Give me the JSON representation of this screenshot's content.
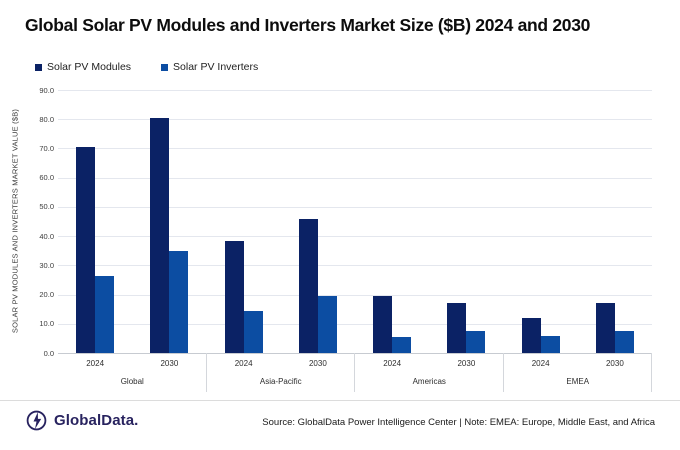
{
  "header": {
    "title": "Global Solar PV Modules and Inverters Market Size ($B) 2024 and 2030"
  },
  "legend": {
    "items": [
      {
        "label": "Solar PV Modules",
        "color": "#0b2265"
      },
      {
        "label": "Solar PV Inverters",
        "color": "#0c4da2"
      }
    ]
  },
  "chart_data": {
    "type": "bar",
    "title": "Global Solar PV Modules and Inverters Market Size ($B) 2024 and 2030",
    "ylabel": "SOLAR PV MODULES AND INVERTERS MARKET VALUE ($B)",
    "xlabel": "",
    "ylim": [
      0,
      90
    ],
    "ytick_step": 10,
    "grid": true,
    "legend_position": "top-left",
    "groups": [
      "Global",
      "Asia-Pacific",
      "Americas",
      "EMEA"
    ],
    "categories": [
      "2024",
      "2030"
    ],
    "series": [
      {
        "name": "Solar PV Modules",
        "color": "#0b2265",
        "values": [
          [
            70.5,
            80.5
          ],
          [
            38.5,
            46.0
          ],
          [
            19.5,
            17.0
          ],
          [
            12.0,
            17.0
          ]
        ]
      },
      {
        "name": "Solar PV Inverters",
        "color": "#0c4da2",
        "values": [
          [
            26.5,
            35.0
          ],
          [
            14.5,
            19.5
          ],
          [
            5.5,
            7.5
          ],
          [
            6.0,
            7.5
          ]
        ]
      }
    ]
  },
  "footer": {
    "logo_text": "GlobalData.",
    "logo_color": "#28235f",
    "source_text": "Source: GlobalData Power Intelligence Center | Note: EMEA: Europe, Middle East, and Africa"
  }
}
